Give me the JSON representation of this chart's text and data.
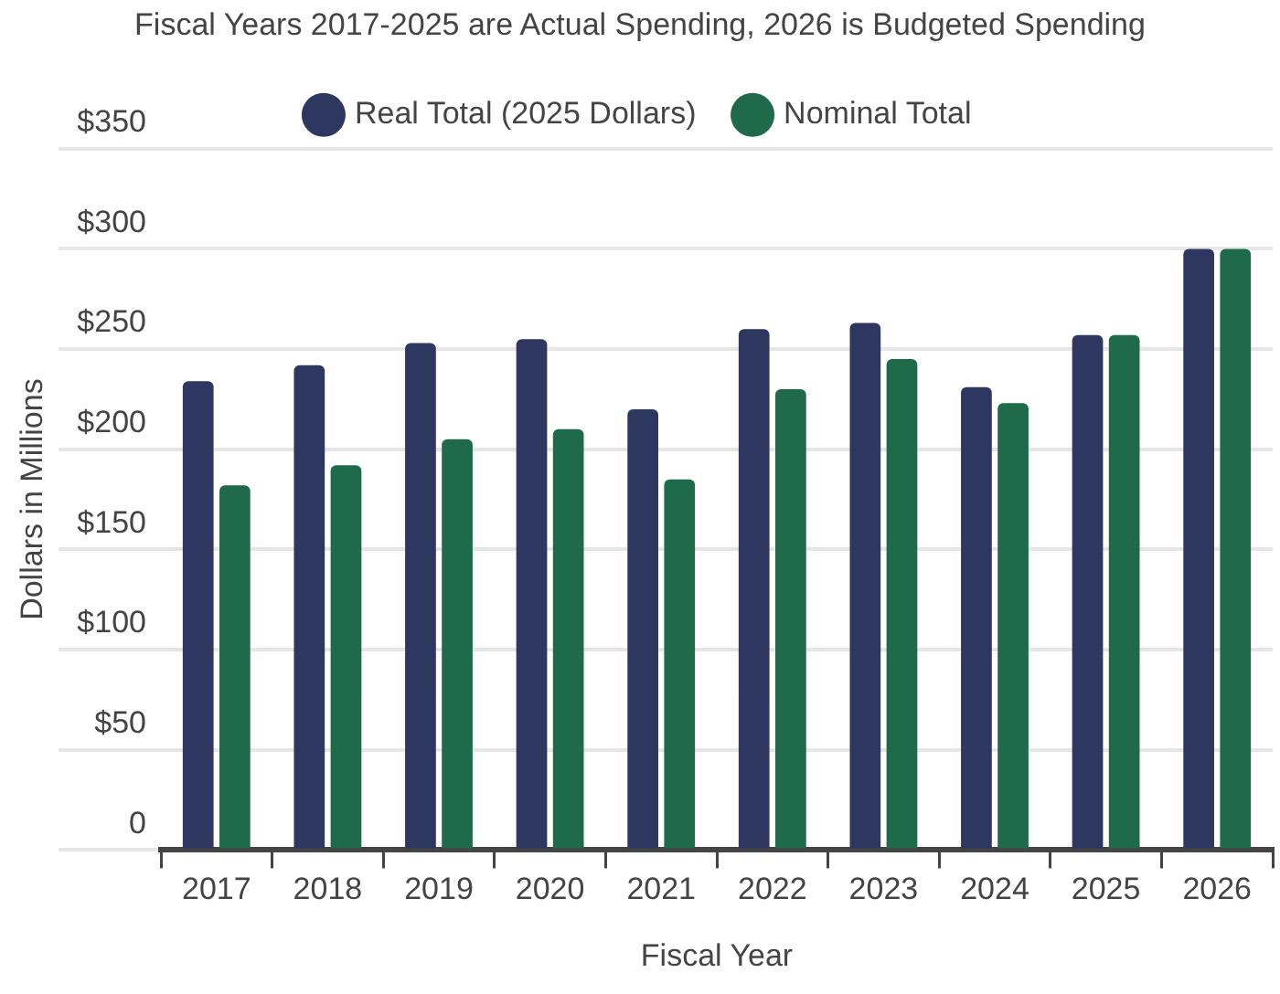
{
  "chart_data": {
    "type": "bar",
    "title": "Fiscal Years 2017-2025 are Actual Spending, 2026 is Budgeted Spending",
    "xlabel": "Fiscal Year",
    "ylabel": "Dollars in Millions",
    "categories": [
      "2017",
      "2018",
      "2019",
      "2020",
      "2021",
      "2022",
      "2023",
      "2024",
      "2025",
      "2026"
    ],
    "series": [
      {
        "name": "Real Total (2025 Dollars)",
        "color": "#2e3760",
        "values": [
          234,
          242,
          253,
          255,
          220,
          260,
          263,
          231,
          257,
          300
        ]
      },
      {
        "name": "Nominal Total",
        "color": "#1e6a4a",
        "values": [
          182,
          192,
          205,
          210,
          185,
          230,
          245,
          223,
          257,
          300
        ]
      }
    ],
    "ylim": [
      0,
      350
    ],
    "yticks": [
      {
        "value": 0,
        "label": "0"
      },
      {
        "value": 50,
        "label": "$50"
      },
      {
        "value": 100,
        "label": "$100"
      },
      {
        "value": 150,
        "label": "$150"
      },
      {
        "value": 200,
        "label": "$200"
      },
      {
        "value": 250,
        "label": "$250"
      },
      {
        "value": 300,
        "label": "$300"
      },
      {
        "value": 350,
        "label": "$350"
      }
    ],
    "grid": "y",
    "legend": "top"
  }
}
